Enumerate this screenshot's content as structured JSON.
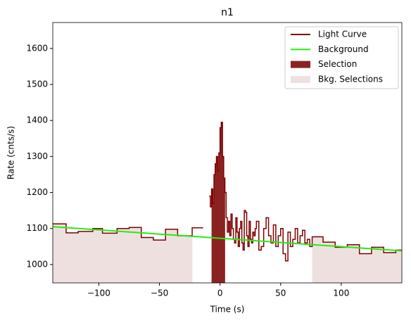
{
  "chart_data": {
    "type": "step",
    "title": "n1",
    "xlabel": "Time (s)",
    "ylabel": "Rate (cnts/s)",
    "xlim": [
      -138,
      150
    ],
    "ylim": [
      949,
      1672
    ],
    "xticks": [
      {
        "value": -100,
        "label": "−100"
      },
      {
        "value": -50,
        "label": "−50"
      },
      0,
      50,
      100
    ],
    "yticks": [
      1000,
      1100,
      1200,
      1300,
      1400,
      1500,
      1600
    ],
    "legend": "upper right",
    "series": [
      {
        "name": "Light Curve",
        "color": "#7f0000",
        "bins": [
          -138,
          -127,
          -117,
          -105,
          -97,
          -85,
          -75,
          -65,
          -55,
          -45,
          -35,
          -23,
          -14,
          -9,
          -8,
          -7,
          -6,
          -5,
          -4,
          -3,
          -2,
          -1,
          0,
          1,
          2,
          3,
          4,
          5,
          6,
          7,
          8,
          9,
          10,
          11,
          12,
          13,
          14,
          15,
          16,
          17,
          18,
          19,
          20,
          21,
          22,
          23,
          24,
          25,
          26,
          27,
          28,
          29,
          30,
          32,
          34,
          36,
          38,
          40,
          42,
          44,
          46,
          48,
          50,
          52,
          54,
          56,
          58,
          60,
          62,
          64,
          66,
          68,
          70,
          72,
          74,
          76,
          85,
          95,
          105,
          115,
          125,
          135,
          145,
          150
        ],
        "values": [
          1113,
          1088,
          1092,
          1100,
          1087,
          1100,
          1103,
          1075,
          1068,
          1098,
          1080,
          1102,
          null,
          1190,
          1160,
          1210,
          1170,
          1250,
          1280,
          1300,
          1260,
          1310,
          1380,
          1395,
          1300,
          1240,
          1200,
          1130,
          1090,
          1120,
          1080,
          1140,
          1100,
          1070,
          1060,
          1130,
          1090,
          1050,
          1100,
          1120,
          1060,
          1040,
          1150,
          1145,
          1080,
          1050,
          1120,
          1070,
          1060,
          1090,
          1080,
          1100,
          1120,
          1040,
          1050,
          1100,
          1130,
          1080,
          1060,
          1110,
          1050,
          1080,
          1100,
          1030,
          1010,
          1090,
          1050,
          1070,
          1100,
          1060,
          1080,
          1095,
          1060,
          1070,
          1050,
          1077,
          1062,
          1048,
          1055,
          1030,
          1048,
          1033,
          1040
        ]
      },
      {
        "name": "Background",
        "color": "#22ee11",
        "x": [
          -138,
          150
        ],
        "values": [
          1105,
          1038
        ]
      }
    ],
    "regions": [
      {
        "name": "Selection",
        "color": "#8b2222",
        "intervals": [
          [
            -7,
            4
          ]
        ]
      },
      {
        "name": "Bkg. Selections",
        "color": "#efe0e0",
        "intervals": [
          [
            -138,
            -23
          ],
          [
            76,
            150
          ]
        ]
      }
    ]
  }
}
